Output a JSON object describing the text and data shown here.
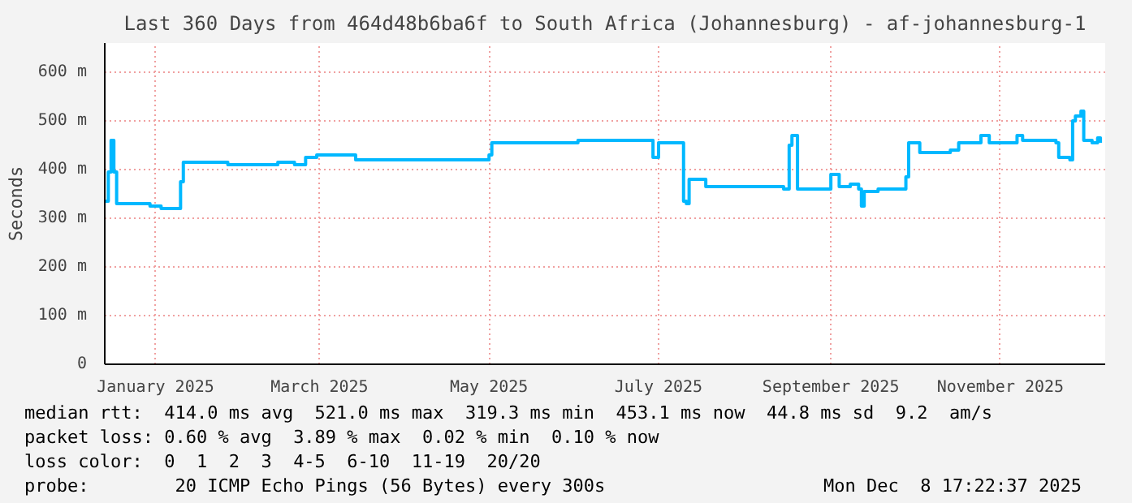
{
  "chart_data": {
    "type": "step",
    "title": "Last 360 Days from 464d48b6ba6f to South Africa (Johannesburg) - af-johannesburg-1",
    "ylabel": "Seconds",
    "x": [
      "2024-12-14",
      "2024-12-15",
      "2024-12-16",
      "2024-12-17",
      "2024-12-18",
      "2024-12-30",
      "2025-01-03",
      "2025-01-09",
      "2025-01-10",
      "2025-01-11",
      "2025-01-27",
      "2025-02-14",
      "2025-02-20",
      "2025-02-24",
      "2025-02-28",
      "2025-03-10",
      "2025-03-14",
      "2025-03-20",
      "2025-03-28",
      "2025-04-01",
      "2025-04-29",
      "2025-05-01",
      "2025-05-02",
      "2025-06-02",
      "2025-06-18",
      "2025-06-28",
      "2025-06-29",
      "2025-07-01",
      "2025-07-08",
      "2025-07-10",
      "2025-07-11",
      "2025-07-12",
      "2025-07-18",
      "2025-08-15",
      "2025-08-17",
      "2025-08-18",
      "2025-08-20",
      "2025-08-31",
      "2025-09-01",
      "2025-09-04",
      "2025-09-08",
      "2025-09-11",
      "2025-09-12",
      "2025-09-13",
      "2025-09-18",
      "2025-09-27",
      "2025-09-28",
      "2025-09-29",
      "2025-10-03",
      "2025-10-12",
      "2025-10-14",
      "2025-10-17",
      "2025-10-25",
      "2025-10-28",
      "2025-11-07",
      "2025-11-09",
      "2025-11-21",
      "2025-11-22",
      "2025-11-26",
      "2025-11-27",
      "2025-11-28",
      "2025-11-30",
      "2025-12-01",
      "2025-12-04",
      "2025-12-06",
      "2025-12-07"
    ],
    "series": [
      {
        "color": "#00b8ff",
        "values": [
          335,
          395,
          460,
          395,
          330,
          325,
          320,
          320,
          375,
          415,
          410,
          415,
          410,
          425,
          430,
          430,
          420,
          420,
          420,
          420,
          420,
          430,
          455,
          460,
          460,
          460,
          425,
          455,
          455,
          335,
          330,
          380,
          365,
          360,
          450,
          470,
          360,
          360,
          390,
          365,
          370,
          360,
          325,
          355,
          360,
          360,
          385,
          455,
          435,
          435,
          440,
          455,
          470,
          455,
          470,
          460,
          455,
          425,
          420,
          500,
          510,
          520,
          460,
          455,
          465,
          455
        ]
      }
    ],
    "xlim": [
      "2024-12-13T17:22",
      "2025-12-08T17:22"
    ],
    "xticks": [
      {
        "value": "2025-01-01",
        "label": "January 2025"
      },
      {
        "value": "2025-03-01",
        "label": "March 2025"
      },
      {
        "value": "2025-05-01",
        "label": "May 2025"
      },
      {
        "value": "2025-07-01",
        "label": "July 2025"
      },
      {
        "value": "2025-09-01",
        "label": "September 2025"
      },
      {
        "value": "2025-11-01",
        "label": "November 2025"
      }
    ],
    "ylim": [
      0,
      660
    ],
    "yticks": [
      0,
      {
        "value": 100,
        "label": "100 m"
      },
      {
        "value": 200,
        "label": "200 m"
      },
      {
        "value": 300,
        "label": "300 m"
      },
      {
        "value": 400,
        "label": "400 m"
      },
      {
        "value": 500,
        "label": "500 m"
      },
      {
        "value": 600,
        "label": "600 m"
      }
    ],
    "grid": true,
    "marker": "none",
    "line_style": "solid",
    "annotations": [
      "median rtt:  414.0 ms avg  521.0 ms max  319.3 ms min  453.1 ms now  44.8 ms sd  9.2  am/s",
      "packet loss: 0.60 % avg  3.89 % max  0.02 % min  0.10 % now",
      "loss color:  0  1  2  3  4-5  6-10  11-19  20/20",
      "probe:        20 ICMP Echo Pings (56 Bytes) every 300s",
      "Mon Dec  8 17:22:37 2025"
    ]
  }
}
